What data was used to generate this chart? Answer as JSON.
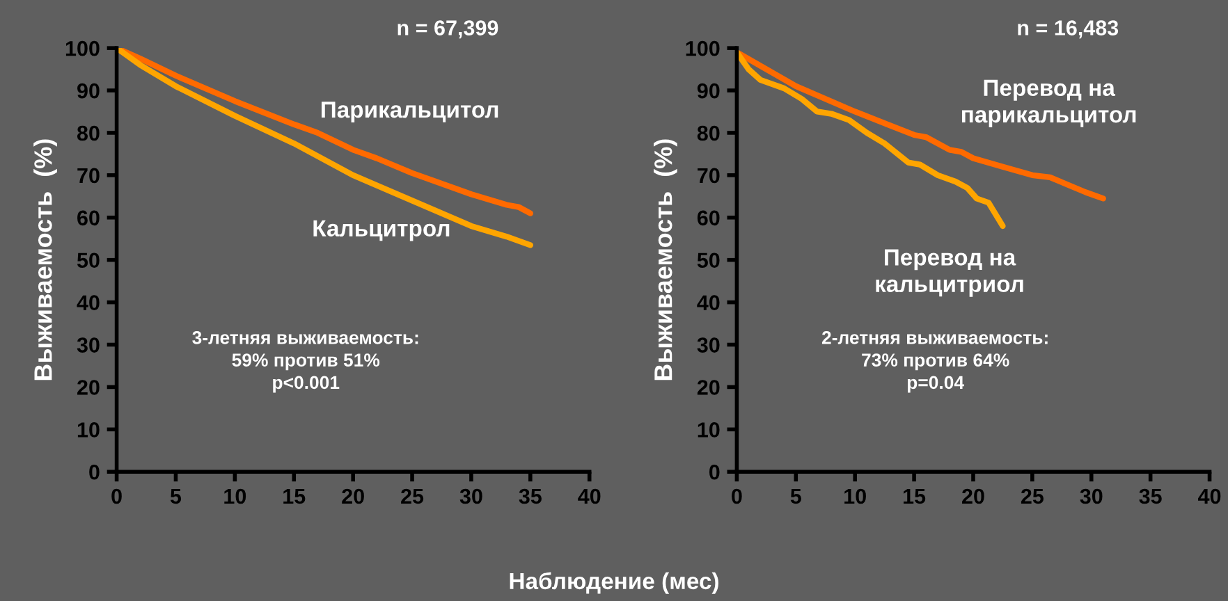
{
  "chart_data": [
    {
      "type": "line",
      "title": "n = 67,399",
      "xlabel": "Наблюдение (мес)",
      "ylabel": "Выживаемость  (%)",
      "xlim": [
        0,
        40
      ],
      "xticks": [
        0,
        5,
        10,
        15,
        20,
        25,
        30,
        35,
        40
      ],
      "ylim": [
        0,
        100
      ],
      "yticks": [
        0,
        10,
        20,
        30,
        40,
        50,
        60,
        70,
        80,
        90,
        100
      ],
      "grid": false,
      "legend": false,
      "annotations": [
        "3-летняя выживаемость:\n59% против 51%\np<0.001"
      ],
      "series": [
        {
          "name": "Парикальцитол",
          "color": "#ff6a00",
          "x": [
            0,
            2,
            5,
            10,
            15,
            17,
            20,
            22,
            25,
            30,
            33,
            34,
            35
          ],
          "values": [
            100,
            97.5,
            93.5,
            87.5,
            82,
            80,
            76,
            74,
            70.5,
            65.5,
            63,
            62.5,
            61
          ]
        },
        {
          "name": "Кальцитрол",
          "color": "#ffa500",
          "x": [
            0,
            2,
            5,
            10,
            15,
            20,
            25,
            30,
            33,
            35
          ],
          "values": [
            100,
            96,
            91,
            84,
            77.5,
            70,
            64,
            58,
            55.5,
            53.5
          ]
        }
      ]
    },
    {
      "type": "line",
      "title": "n = 16,483",
      "ylabel": "Выживаемость  (%)",
      "xlim": [
        0,
        40
      ],
      "xticks": [
        0,
        5,
        10,
        15,
        20,
        25,
        30,
        35,
        40
      ],
      "ylim": [
        0,
        100
      ],
      "yticks": [
        0,
        10,
        20,
        30,
        40,
        50,
        60,
        70,
        80,
        90,
        100
      ],
      "grid": false,
      "legend": false,
      "annotations": [
        "2-летняя выживаемость:\n73% против 64%\np=0.04"
      ],
      "series": [
        {
          "name": "Перевод на\nпарикальцитол",
          "color": "#ff6a00",
          "x": [
            0,
            5,
            10,
            15,
            16,
            18,
            19,
            20,
            22.5,
            25,
            26.5,
            29.5,
            31
          ],
          "values": [
            99,
            91,
            85,
            79.5,
            79,
            76,
            75.5,
            74,
            72,
            70,
            69.5,
            66,
            64.5
          ]
        },
        {
          "name": "Перевод на\nкальцитриол",
          "color": "#ffa500",
          "x": [
            0,
            1,
            2,
            4,
            5.5,
            6.8,
            8,
            9.5,
            11,
            12.5,
            14.5,
            15.5,
            17,
            18.5,
            19.5,
            20.3,
            21.3,
            22.5
          ],
          "values": [
            99,
            95,
            92.5,
            90.5,
            88,
            85,
            84.5,
            83,
            80,
            77.5,
            73,
            72.5,
            70,
            68.5,
            67,
            64.5,
            63.5,
            58
          ]
        }
      ]
    }
  ]
}
